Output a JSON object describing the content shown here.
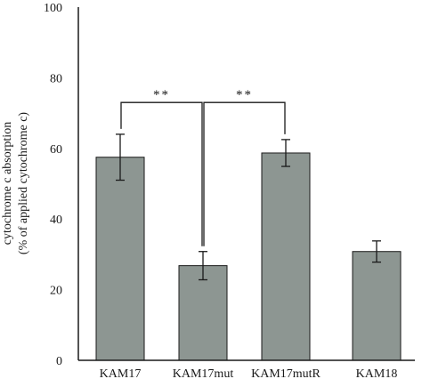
{
  "chart_data": {
    "type": "bar",
    "title": "",
    "xlabel": "",
    "ylabel_lines": [
      "cytochrome c absorption",
      "(% of applied cytochrome c)"
    ],
    "categories": [
      "KAM17",
      "KAM17mut",
      "KAM17mutR",
      "KAM18"
    ],
    "values": [
      57.5,
      26.8,
      58.7,
      30.8
    ],
    "errors": [
      6.5,
      4.0,
      3.8,
      3.0
    ],
    "ylim": [
      0,
      100
    ],
    "yticks": [
      0,
      20,
      40,
      60,
      80,
      100
    ],
    "grid": false,
    "bar_color": "#8d9692",
    "significance": [
      {
        "from": 0,
        "to": 1,
        "label": "**",
        "y": 73
      },
      {
        "from": 1,
        "to": 2,
        "label": "**",
        "y": 73
      }
    ]
  }
}
